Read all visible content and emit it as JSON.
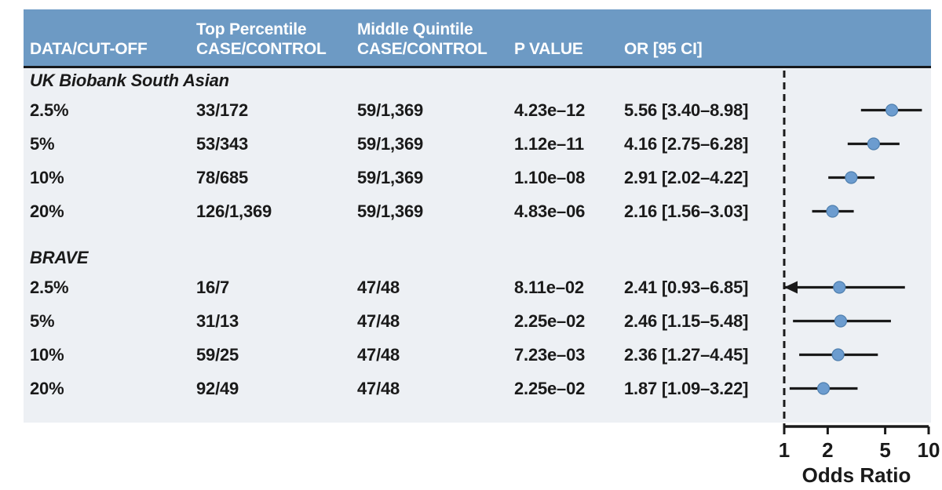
{
  "colors": {
    "header_bg": "#6d9ac4",
    "header_text": "#ffffff",
    "body_bg": "#edf0f4",
    "line": "#1a1a1a",
    "point_fill": "#6c9ccf",
    "point_stroke": "#4f7fae"
  },
  "table_header": {
    "columns": [
      {
        "line1": "",
        "line2": "DATA/CUT-OFF"
      },
      {
        "line1": "Top Percentile",
        "line2": "CASE/CONTROL"
      },
      {
        "line1": "Middle Quintile",
        "line2": "CASE/CONTROL"
      },
      {
        "line1": "",
        "line2": "P VALUE"
      },
      {
        "line1": "",
        "line2": "OR [95 CI]"
      }
    ]
  },
  "chart_data": {
    "type": "forest",
    "orientation": "horizontal",
    "axis": {
      "scale": "log10",
      "min": 1,
      "max": 10,
      "ticks": [
        1,
        2,
        5,
        10
      ],
      "label": "Odds Ratio",
      "reference_line": 1
    },
    "groups": [
      {
        "name": "UK Biobank South Asian",
        "rows": [
          {
            "cutoff": "2.5%",
            "top_percentile": "33/172",
            "middle_quintile": "59/1,369",
            "p_value": "4.23e–12",
            "or_ci": "5.56 [3.40–8.98]",
            "or": 5.56,
            "ci_low": 3.4,
            "ci_high": 8.98,
            "ci_clipped_low": false
          },
          {
            "cutoff": "5%",
            "top_percentile": "53/343",
            "middle_quintile": "59/1,369",
            "p_value": "1.12e–11",
            "or_ci": "4.16 [2.75–6.28]",
            "or": 4.16,
            "ci_low": 2.75,
            "ci_high": 6.28,
            "ci_clipped_low": false
          },
          {
            "cutoff": "10%",
            "top_percentile": "78/685",
            "middle_quintile": "59/1,369",
            "p_value": "1.10e–08",
            "or_ci": "2.91 [2.02–4.22]",
            "or": 2.91,
            "ci_low": 2.02,
            "ci_high": 4.22,
            "ci_clipped_low": false
          },
          {
            "cutoff": "20%",
            "top_percentile": "126/1,369",
            "middle_quintile": "59/1,369",
            "p_value": "4.83e–06",
            "or_ci": "2.16 [1.56–3.03]",
            "or": 2.16,
            "ci_low": 1.56,
            "ci_high": 3.03,
            "ci_clipped_low": false
          }
        ]
      },
      {
        "name": "BRAVE",
        "rows": [
          {
            "cutoff": "2.5%",
            "top_percentile": "16/7",
            "middle_quintile": "47/48",
            "p_value": "8.11e–02",
            "or_ci": "2.41 [0.93–6.85]",
            "or": 2.41,
            "ci_low": 0.93,
            "ci_high": 6.85,
            "ci_clipped_low": true
          },
          {
            "cutoff": "5%",
            "top_percentile": "31/13",
            "middle_quintile": "47/48",
            "p_value": "2.25e–02",
            "or_ci": "2.46 [1.15–5.48]",
            "or": 2.46,
            "ci_low": 1.15,
            "ci_high": 5.48,
            "ci_clipped_low": false
          },
          {
            "cutoff": "10%",
            "top_percentile": "59/25",
            "middle_quintile": "47/48",
            "p_value": "7.23e–03",
            "or_ci": "2.36 [1.27–4.45]",
            "or": 2.36,
            "ci_low": 1.27,
            "ci_high": 4.45,
            "ci_clipped_low": false
          },
          {
            "cutoff": "20%",
            "top_percentile": "92/49",
            "middle_quintile": "47/48",
            "p_value": "2.25e–02",
            "or_ci": "1.87 [1.09–3.22]",
            "or": 1.87,
            "ci_low": 1.09,
            "ci_high": 3.22,
            "ci_clipped_low": false
          }
        ]
      }
    ]
  }
}
